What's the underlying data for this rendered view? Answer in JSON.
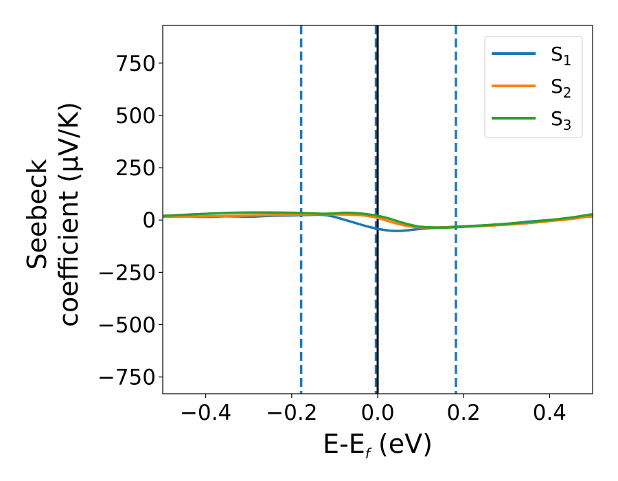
{
  "chart_data": {
    "type": "line",
    "xlabel": {
      "main": "E-E",
      "sub": "f",
      "suffix": " (eV)"
    },
    "ylabel": {
      "line1": "Seebeck",
      "line2": "coefficient  (μV/K)"
    },
    "xlim": [
      -0.5,
      0.5
    ],
    "ylim": [
      -830,
      930
    ],
    "xticks": [
      -0.4,
      -0.2,
      0.0,
      0.2,
      0.4
    ],
    "xtick_labels": [
      "−0.4",
      "−0.2",
      "0.0",
      "0.2",
      "0.4"
    ],
    "yticks": [
      -750,
      -500,
      -250,
      0,
      250,
      500,
      750
    ],
    "ytick_labels": [
      "−750",
      "−500",
      "−250",
      "0",
      "250",
      "500",
      "750"
    ],
    "grid": false,
    "legend_position": "top-right",
    "vlines": [
      {
        "x": -0.178,
        "style": "dashed",
        "color": "#1f77b4"
      },
      {
        "x": -0.004,
        "style": "dashed",
        "color": "#1f77b4"
      },
      {
        "x": 0.182,
        "style": "dashed",
        "color": "#1f77b4"
      },
      {
        "x": 0.0,
        "style": "solid",
        "color": "#000000"
      }
    ],
    "series": [
      {
        "name": "S",
        "sub": "1",
        "color": "#1f77b4",
        "x": [
          -0.5,
          -0.45,
          -0.4,
          -0.35,
          -0.3,
          -0.25,
          -0.2,
          -0.15,
          -0.125,
          -0.1,
          -0.075,
          -0.05,
          -0.025,
          0.0,
          0.025,
          0.05,
          0.075,
          0.1,
          0.15,
          0.2,
          0.25,
          0.3,
          0.35,
          0.4,
          0.45,
          0.5
        ],
        "y": [
          18,
          18,
          15,
          18,
          16,
          20,
          22,
          25,
          24,
          15,
          0,
          -15,
          -30,
          -42,
          -50,
          -52,
          -48,
          -42,
          -35,
          -30,
          -25,
          -18,
          -8,
          0,
          8,
          18
        ]
      },
      {
        "name": "S",
        "sub": "2",
        "color": "#ff7f0e",
        "x": [
          -0.5,
          -0.45,
          -0.4,
          -0.35,
          -0.3,
          -0.25,
          -0.2,
          -0.15,
          -0.125,
          -0.1,
          -0.075,
          -0.05,
          -0.025,
          0.0,
          0.025,
          0.05,
          0.075,
          0.1,
          0.15,
          0.2,
          0.25,
          0.3,
          0.35,
          0.4,
          0.45,
          0.5
        ],
        "y": [
          15,
          16,
          18,
          20,
          22,
          24,
          26,
          28,
          28,
          27,
          26,
          24,
          20,
          10,
          -5,
          -20,
          -30,
          -35,
          -35,
          -32,
          -28,
          -22,
          -15,
          -5,
          5,
          20
        ]
      },
      {
        "name": "S",
        "sub": "3",
        "color": "#2ca02c",
        "x": [
          -0.5,
          -0.45,
          -0.4,
          -0.35,
          -0.3,
          -0.25,
          -0.2,
          -0.15,
          -0.125,
          -0.1,
          -0.075,
          -0.05,
          -0.025,
          0.0,
          0.025,
          0.05,
          0.075,
          0.1,
          0.15,
          0.2,
          0.25,
          0.3,
          0.35,
          0.4,
          0.45,
          0.5
        ],
        "y": [
          20,
          25,
          30,
          34,
          36,
          36,
          35,
          32,
          30,
          32,
          35,
          33,
          28,
          20,
          8,
          -8,
          -22,
          -32,
          -36,
          -32,
          -25,
          -18,
          -10,
          0,
          12,
          28
        ]
      }
    ]
  }
}
